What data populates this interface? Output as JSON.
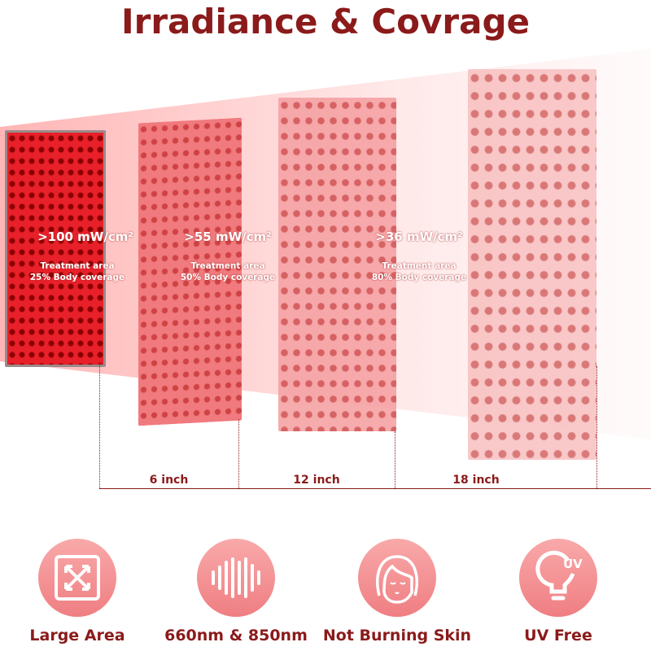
{
  "title": "Irradiance & Covrage",
  "colors": {
    "accent": "#8b1a1a",
    "icon_bg": "#f08a8c",
    "beam": "#ff8080"
  },
  "zones": [
    {
      "irradiance": ">100 mW/cm²",
      "area_label": "Treatment area",
      "coverage": "25% Body coverage",
      "distance": ""
    },
    {
      "irradiance": ">55 mW/cm²",
      "area_label": "Treatment area",
      "coverage": "50% Body coverage",
      "distance": "6 inch"
    },
    {
      "irradiance": ">36 mW/cm²",
      "area_label": "Treatment area",
      "coverage": "80% Body coverage",
      "distance": "12 inch"
    }
  ],
  "distances": [
    "6 inch",
    "12 inch",
    "18 inch"
  ],
  "features": [
    {
      "label": "Large Area",
      "icon": "expand-arrows-icon"
    },
    {
      "label": "660nm & 850nm",
      "icon": "wave-bars-icon"
    },
    {
      "label": "Not Burning Skin",
      "icon": "face-icon"
    },
    {
      "label": "UV Free",
      "icon": "uv-bulb-icon",
      "icon_text": "UV"
    }
  ]
}
